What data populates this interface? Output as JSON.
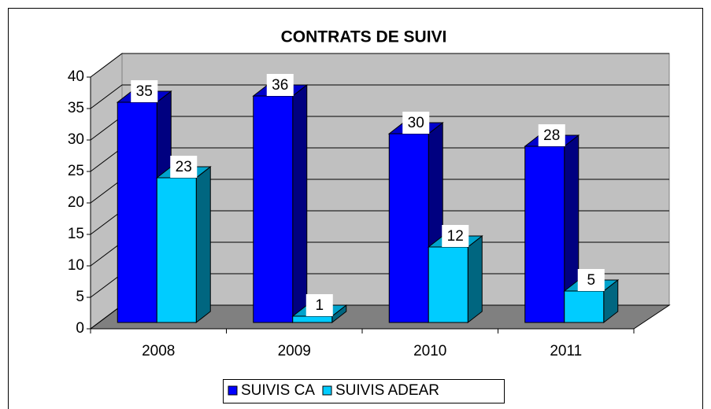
{
  "chart_data": {
    "type": "bar3d",
    "title": "CONTRATS DE SUIVI",
    "categories": [
      "2008",
      "2009",
      "2010",
      "2011"
    ],
    "series": [
      {
        "name": "SUIVIS CA",
        "color": "#0000ff",
        "values": [
          35,
          36,
          30,
          28
        ]
      },
      {
        "name": "SUIVIS ADEAR",
        "color": "#00ccff",
        "values": [
          23,
          1,
          12,
          5
        ]
      }
    ],
    "ylim": [
      0,
      40
    ],
    "yticks": [
      0,
      5,
      10,
      15,
      20,
      25,
      30,
      35,
      40
    ],
    "grid": true,
    "legend": "bottom"
  }
}
